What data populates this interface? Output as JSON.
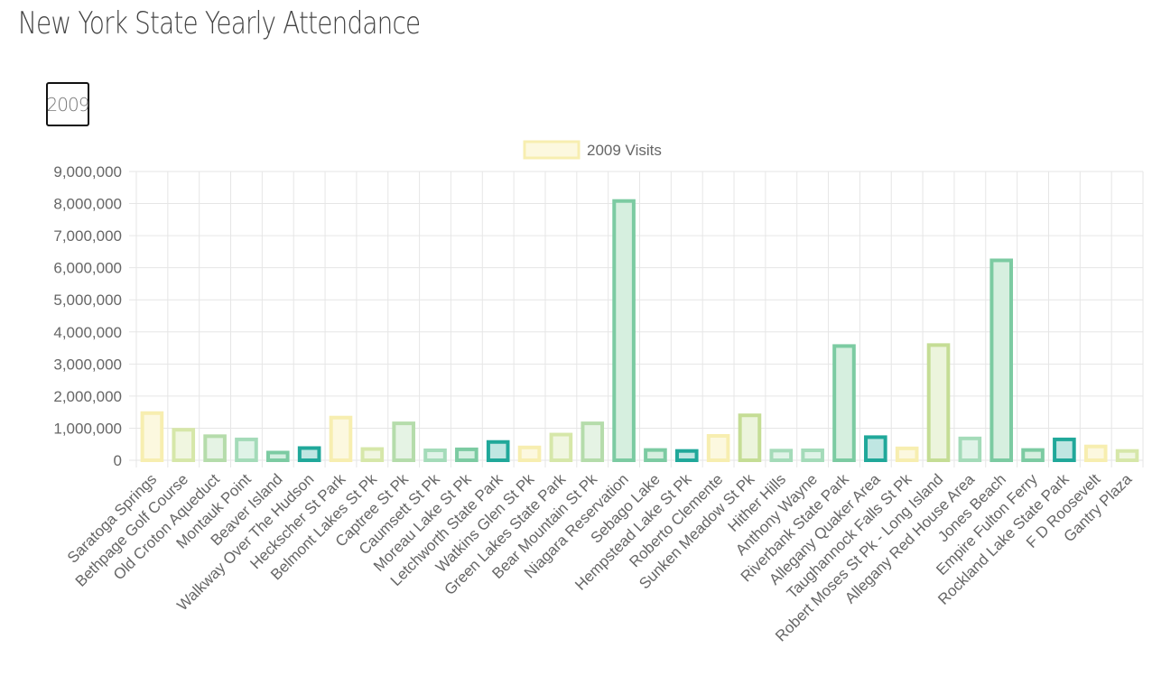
{
  "page": {
    "title": "New York State Yearly Attendance",
    "year_selector": "2009"
  },
  "chart_data": {
    "type": "bar",
    "title": "",
    "xlabel": "",
    "ylabel": "",
    "ylim": [
      0,
      9000000
    ],
    "yticks": [
      0,
      1000000,
      2000000,
      3000000,
      4000000,
      5000000,
      6000000,
      7000000,
      8000000,
      9000000
    ],
    "ytick_labels": [
      "0",
      "1,000,000",
      "2,000,000",
      "3,000,000",
      "4,000,000",
      "5,000,000",
      "6,000,000",
      "7,000,000",
      "8,000,000",
      "9,000,000"
    ],
    "grid": true,
    "legend_position": "top",
    "categories": [
      "Saratoga Springs",
      "Bethpage Golf Course",
      "Old Croton Aqueduct",
      "Montauk Point",
      "Beaver Island",
      "Walkway Over The Hudson",
      "Heckscher St Park",
      "Belmont Lakes St Pk",
      "Captree St Pk",
      "Caumsett St Pk",
      "Moreau Lake St Pk",
      "Letchworth State Park",
      "Watkins Glen St Pk",
      "Green Lakes State Park",
      "Bear Mountain St Pk",
      "Niagara Reservation",
      "Sebago Lake",
      "Hempstead Lake St Pk",
      "Roberto Clemente",
      "Sunken Meadow St Pk",
      "Hither Hills",
      "Anthony Wayne",
      "Riverbank State Park",
      "Allegany Quaker Area",
      "Taughannock Falls St Pk",
      "Robert Moses St Pk - Long Island",
      "Allegany Red House Area",
      "Jones Beach",
      "Empire Fulton Ferry",
      "Rockland Lake State Park",
      "F D Roosevelt",
      "Gantry Plaza"
    ],
    "series": [
      {
        "name": "2009 Visits",
        "values": [
          1470000,
          950000,
          750000,
          650000,
          240000,
          380000,
          1330000,
          350000,
          1150000,
          310000,
          340000,
          570000,
          400000,
          800000,
          1150000,
          8080000,
          320000,
          290000,
          760000,
          1400000,
          300000,
          310000,
          3560000,
          720000,
          370000,
          3590000,
          680000,
          6230000,
          320000,
          650000,
          430000,
          290000
        ],
        "border_colors": [
          "#f7eeb0",
          "#d6e7a9",
          "#b5dcab",
          "#a4dbb9",
          "#7ccba2",
          "#20a89a",
          "#f7eeb0",
          "#d6e7a9",
          "#b5dcab",
          "#a4dbb9",
          "#7ccba2",
          "#20a89a",
          "#f7eeb0",
          "#d6e7a9",
          "#b5dcab",
          "#7ccba2",
          "#7ccba2",
          "#20a89a",
          "#f7eeb0",
          "#c5dd95",
          "#a4dbb9",
          "#a4dbb9",
          "#7ccba2",
          "#20a89a",
          "#f7eeb0",
          "#c5dd95",
          "#a4dbb9",
          "#7ccba2",
          "#7ccba2",
          "#20a89a",
          "#f7eeb0",
          "#d6e7a9"
        ],
        "fill_colors": [
          "#fcf8df",
          "#f0f6e0",
          "#e5f3e4",
          "#dff3e7",
          "#d3efe0",
          "#bfe6e2",
          "#fcf8df",
          "#f0f6e0",
          "#e5f3e4",
          "#dff3e7",
          "#d3efe0",
          "#bfe6e2",
          "#fcf8df",
          "#f0f6e0",
          "#e5f3e4",
          "#d6efdf",
          "#d6efdf",
          "#bfe6e2",
          "#fcf8df",
          "#ecf4dc",
          "#dff3e7",
          "#dff3e7",
          "#d6efdf",
          "#bfe6e2",
          "#fcf8df",
          "#ecf4dc",
          "#dff3e7",
          "#d6efdf",
          "#d6efdf",
          "#bfe6e2",
          "#fcf8df",
          "#f0f6e0"
        ]
      }
    ],
    "legend": {
      "label": "2009 Visits",
      "border_color": "#f7eeb0",
      "fill_color": "#fcf8df"
    },
    "colors": {
      "grid": "#e6e6e6",
      "tick_text": "#666666"
    }
  }
}
